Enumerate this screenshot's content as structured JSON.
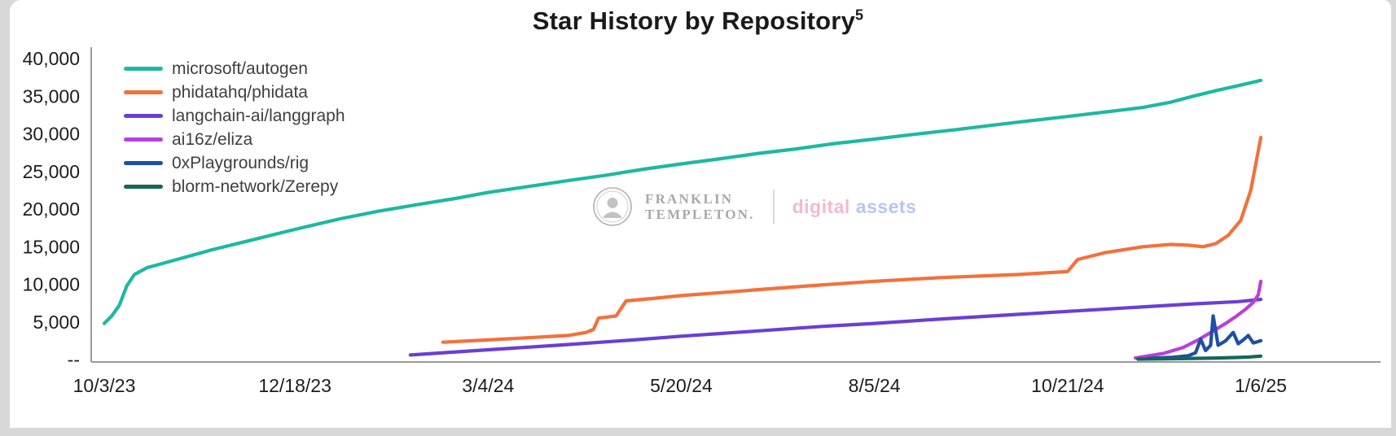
{
  "page": {
    "background": "#d8d8d8",
    "panel": "#ffffff"
  },
  "title": {
    "text": "Star History by Repository",
    "superscript": "5"
  },
  "watermark": {
    "brand_line1": "FRANKLIN",
    "brand_line2": "TEMPLETON.",
    "suffix_word1": "digital",
    "suffix_word2": "assets"
  },
  "chart_data": {
    "type": "line",
    "title": "Star History by Repository 5",
    "xlabel": "",
    "ylabel": "",
    "grid": false,
    "legend_position": "top-left",
    "ylim": [
      0,
      40000
    ],
    "x_range": [
      "10/3/23",
      "1/6/25"
    ],
    "y_ticks": [
      {
        "value": 40000,
        "label": "40,000"
      },
      {
        "value": 35000,
        "label": "35,000"
      },
      {
        "value": 30000,
        "label": "30,000"
      },
      {
        "value": 25000,
        "label": "25,000"
      },
      {
        "value": 20000,
        "label": "20,000"
      },
      {
        "value": 15000,
        "label": "15,000"
      },
      {
        "value": 10000,
        "label": "10,000"
      },
      {
        "value": 5000,
        "label": "5,000"
      },
      {
        "value": 0,
        "label": "--"
      }
    ],
    "x_ticks": [
      "10/3/23",
      "12/18/23",
      "3/4/24",
      "5/20/24",
      "8/5/24",
      "10/21/24",
      "1/6/25"
    ],
    "series": [
      {
        "name": "microsoft/autogen",
        "color": "#1db8a2",
        "points": [
          [
            "10/3/23",
            4800
          ],
          [
            "10/6/23",
            5800
          ],
          [
            "10/9/23",
            7200
          ],
          [
            "10/12/23",
            9800
          ],
          [
            "10/15/23",
            11300
          ],
          [
            "10/20/23",
            12200
          ],
          [
            "11/1/23",
            13300
          ],
          [
            "11/15/23",
            14600
          ],
          [
            "12/1/23",
            15900
          ],
          [
            "12/18/23",
            17300
          ],
          [
            "1/5/24",
            18700
          ],
          [
            "1/20/24",
            19700
          ],
          [
            "2/5/24",
            20600
          ],
          [
            "2/20/24",
            21400
          ],
          [
            "3/4/24",
            22200
          ],
          [
            "3/20/24",
            23000
          ],
          [
            "4/5/24",
            23800
          ],
          [
            "4/20/24",
            24500
          ],
          [
            "5/5/24",
            25300
          ],
          [
            "5/20/24",
            26000
          ],
          [
            "6/5/24",
            26700
          ],
          [
            "6/20/24",
            27400
          ],
          [
            "7/5/24",
            28000
          ],
          [
            "7/20/24",
            28700
          ],
          [
            "8/5/24",
            29300
          ],
          [
            "8/20/24",
            29900
          ],
          [
            "9/5/24",
            30500
          ],
          [
            "9/20/24",
            31100
          ],
          [
            "10/5/24",
            31700
          ],
          [
            "10/21/24",
            32300
          ],
          [
            "11/5/24",
            32900
          ],
          [
            "11/20/24",
            33500
          ],
          [
            "12/1/24",
            34200
          ],
          [
            "12/10/24",
            35000
          ],
          [
            "12/20/24",
            35800
          ],
          [
            "12/28/24",
            36400
          ],
          [
            "1/6/25",
            37100
          ]
        ]
      },
      {
        "name": "phidatahq/phidata",
        "color": "#f4703b",
        "points": [
          [
            "2/15/24",
            2300
          ],
          [
            "3/4/24",
            2600
          ],
          [
            "3/20/24",
            2900
          ],
          [
            "4/5/24",
            3200
          ],
          [
            "4/12/24",
            3600
          ],
          [
            "4/15/24",
            4000
          ],
          [
            "4/17/24",
            5500
          ],
          [
            "4/24/24",
            5800
          ],
          [
            "4/28/24",
            7800
          ],
          [
            "5/8/24",
            8100
          ],
          [
            "5/20/24",
            8500
          ],
          [
            "6/5/24",
            8900
          ],
          [
            "6/20/24",
            9300
          ],
          [
            "7/10/24",
            9800
          ],
          [
            "8/5/24",
            10400
          ],
          [
            "9/1/24",
            10900
          ],
          [
            "10/1/24",
            11300
          ],
          [
            "10/21/24",
            11700
          ],
          [
            "10/25/24",
            13300
          ],
          [
            "11/5/24",
            14200
          ],
          [
            "11/20/24",
            15000
          ],
          [
            "12/1/24",
            15300
          ],
          [
            "12/8/24",
            15200
          ],
          [
            "12/14/24",
            15000
          ],
          [
            "12/19/24",
            15400
          ],
          [
            "12/24/24",
            16500
          ],
          [
            "12/29/24",
            18500
          ],
          [
            "1/2/25",
            22500
          ],
          [
            "1/6/25",
            29500
          ]
        ]
      },
      {
        "name": "langchain-ai/langgraph",
        "color": "#6a3fd4",
        "points": [
          [
            "2/2/24",
            600
          ],
          [
            "3/4/24",
            1300
          ],
          [
            "4/1/24",
            1900
          ],
          [
            "5/1/24",
            2600
          ],
          [
            "5/20/24",
            3100
          ],
          [
            "6/15/24",
            3700
          ],
          [
            "7/15/24",
            4400
          ],
          [
            "8/5/24",
            4800
          ],
          [
            "9/1/24",
            5400
          ],
          [
            "10/1/24",
            6000
          ],
          [
            "10/21/24",
            6400
          ],
          [
            "11/15/24",
            6900
          ],
          [
            "12/10/24",
            7400
          ],
          [
            "12/28/24",
            7700
          ],
          [
            "1/6/25",
            8000
          ]
        ]
      },
      {
        "name": "ai16z/eliza",
        "color": "#bb3fd9",
        "points": [
          [
            "11/17/24",
            200
          ],
          [
            "11/28/24",
            800
          ],
          [
            "12/6/24",
            1600
          ],
          [
            "12/12/24",
            2600
          ],
          [
            "12/18/24",
            3800
          ],
          [
            "12/23/24",
            4800
          ],
          [
            "12/27/24",
            5700
          ],
          [
            "12/31/24",
            6700
          ],
          [
            "1/3/25",
            7600
          ],
          [
            "1/5/25",
            8600
          ],
          [
            "1/6/25",
            10400
          ]
        ]
      },
      {
        "name": "0xPlaygrounds/rig",
        "color": "#1e4fa3",
        "points": [
          [
            "11/22/24",
            150
          ],
          [
            "12/2/24",
            300
          ],
          [
            "12/8/24",
            500
          ],
          [
            "12/11/24",
            900
          ],
          [
            "12/13/24",
            2700
          ],
          [
            "12/15/24",
            1200
          ],
          [
            "12/17/24",
            1900
          ],
          [
            "12/18/24",
            5800
          ],
          [
            "12/20/24",
            1900
          ],
          [
            "12/23/24",
            2500
          ],
          [
            "12/26/24",
            3600
          ],
          [
            "12/28/24",
            2100
          ],
          [
            "12/30/24",
            2600
          ],
          [
            "1/1/25",
            3200
          ],
          [
            "1/3/25",
            2200
          ],
          [
            "1/6/25",
            2500
          ]
        ]
      },
      {
        "name": "blorm-network/Zerepy",
        "color": "#14665a",
        "points": [
          [
            "11/18/24",
            50
          ],
          [
            "12/5/24",
            120
          ],
          [
            "12/20/24",
            200
          ],
          [
            "1/1/25",
            320
          ],
          [
            "1/6/25",
            450
          ]
        ]
      }
    ]
  }
}
